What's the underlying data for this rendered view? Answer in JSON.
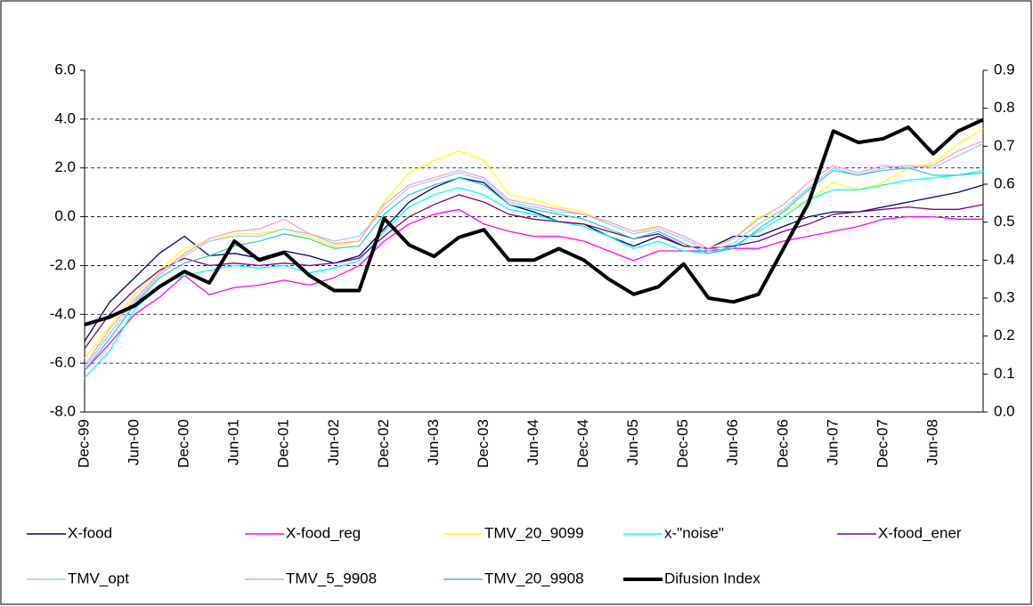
{
  "chart_data": {
    "type": "line",
    "categories": [
      "Dec-99",
      null,
      "Jun-00",
      null,
      "Dec-00",
      null,
      "Jun-01",
      null,
      "Dec-01",
      null,
      "Jun-02",
      null,
      "Dec-02",
      null,
      "Jun-03",
      null,
      "Dec-03",
      null,
      "Jun-04",
      null,
      "Dec-04",
      null,
      "Jun-05",
      null,
      "Dec-05",
      null,
      "Jun-06",
      null,
      "Dec-06",
      null,
      "Jun-07",
      null,
      "Dec-07",
      null,
      "Jun-08",
      null,
      null
    ],
    "ylim": [
      -8,
      6
    ],
    "yticks": [
      {
        "value": -8,
        "label": "-8.0"
      },
      {
        "value": -6,
        "label": "-6.0"
      },
      {
        "value": -4,
        "label": "-4.0"
      },
      {
        "value": -2,
        "label": "-2.0"
      },
      {
        "value": 0,
        "label": "0.0"
      },
      {
        "value": 2,
        "label": "2.0"
      },
      {
        "value": 4,
        "label": "4.0"
      },
      {
        "value": 6,
        "label": "6.0"
      }
    ],
    "y2lim": [
      0,
      0.9
    ],
    "y2ticks": [
      {
        "value": 0,
        "label": "0.0"
      },
      0.1,
      0.2,
      0.3,
      0.4,
      0.5,
      0.6,
      0.7,
      0.8,
      0.9
    ],
    "grid": true,
    "series": [
      {
        "name": "X-food",
        "color": "#000080",
        "values": [
          -5.1,
          -3.5,
          -2.5,
          -1.5,
          -0.8,
          -1.6,
          -1.5,
          -1.7,
          -1.4,
          -1.6,
          -1.9,
          -1.6,
          -0.5,
          0.6,
          1.2,
          1.6,
          1.4,
          0.5,
          0.2,
          -0.2,
          -0.3,
          -0.8,
          -1.2,
          -0.8,
          -1.2,
          -1.3,
          -0.8,
          -0.8,
          -0.4,
          0,
          0.2,
          0.2,
          0.4,
          0.6,
          0.8,
          1.0,
          1.3
        ]
      },
      {
        "name": "X-food_reg",
        "color": "#ff00ff",
        "values": [
          -6.3,
          -5.2,
          -4.0,
          -3.3,
          -2.4,
          -3.2,
          -2.9,
          -2.8,
          -2.6,
          -2.8,
          -2.5,
          -2.0,
          -1.0,
          -0.3,
          0.1,
          0.3,
          -0.3,
          -0.6,
          -0.8,
          -0.8,
          -1.0,
          -1.4,
          -1.8,
          -1.4,
          -1.4,
          -1.4,
          -1.3,
          -1.3,
          -1.0,
          -0.8,
          -0.6,
          -0.4,
          -0.1,
          0,
          0,
          -0.1,
          -0.1
        ]
      },
      {
        "name": "TMV_20_9099",
        "color": "#ffff00",
        "values": [
          -5.8,
          -4.5,
          -3.2,
          -2.2,
          -1.3,
          -1.0,
          -0.7,
          -0.7,
          -0.5,
          -0.8,
          -1.2,
          -1.0,
          0.6,
          1.8,
          2.3,
          2.7,
          2.3,
          0.9,
          0.7,
          0.4,
          0.2,
          -0.3,
          -0.7,
          -0.4,
          -0.8,
          -1.3,
          -0.9,
          0,
          0.2,
          0.7,
          1.4,
          1.1,
          1.4,
          2.0,
          2.2,
          3.0,
          3.6
        ]
      },
      {
        "name": "x-\"noise\"",
        "color": "#00ffff",
        "values": [
          -6.6,
          -5.5,
          -3.8,
          -2.8,
          -2.4,
          -2.2,
          -2.0,
          -2.1,
          -2.0,
          -2.3,
          -2.1,
          -1.8,
          -0.6,
          0.4,
          0.9,
          1.2,
          0.9,
          0.3,
          0.1,
          -0.2,
          -0.4,
          -0.8,
          -1.3,
          -1.0,
          -1.4,
          -1.5,
          -1.2,
          -0.6,
          0,
          0.7,
          1.1,
          1.1,
          1.3,
          1.5,
          1.6,
          1.7,
          1.9
        ]
      },
      {
        "name": "X-food_ener",
        "color": "#800080",
        "values": [
          -5.4,
          -4.0,
          -3.0,
          -2.2,
          -1.7,
          -2.0,
          -1.9,
          -2.0,
          -1.9,
          -2.0,
          -1.9,
          -1.7,
          -0.8,
          0.0,
          0.5,
          0.9,
          0.6,
          0.1,
          -0.1,
          -0.2,
          -0.3,
          -0.6,
          -0.9,
          -0.7,
          -1.2,
          -1.3,
          -1.2,
          -1.0,
          -0.6,
          -0.3,
          0.1,
          0.2,
          0.3,
          0.4,
          0.3,
          0.3,
          0.5
        ]
      },
      {
        "name": "TMV_opt",
        "color": "#99ccff",
        "values": [
          -6.2,
          -4.8,
          -3.5,
          -2.4,
          -1.6,
          -1.0,
          -0.8,
          -0.8,
          -0.5,
          -0.7,
          -1.0,
          -0.8,
          0.3,
          1.2,
          1.5,
          1.8,
          1.5,
          0.6,
          0.4,
          0.2,
          0.1,
          -0.3,
          -0.7,
          -0.5,
          -0.9,
          -1.4,
          -1.1,
          -0.3,
          0.3,
          1.2,
          2.0,
          1.7,
          2.0,
          2.1,
          2.0,
          2.5,
          3.0
        ]
      },
      {
        "name": "TMV_5_9908",
        "color": "#ff99cc",
        "values": [
          -6.1,
          -4.6,
          -3.4,
          -2.3,
          -1.5,
          -0.9,
          -0.6,
          -0.5,
          -0.1,
          -0.7,
          -1.1,
          -1.0,
          0.5,
          1.3,
          1.6,
          1.9,
          1.6,
          0.7,
          0.5,
          0.3,
          0.1,
          -0.2,
          -0.6,
          -0.4,
          -0.8,
          -1.3,
          -0.9,
          -0.1,
          0.5,
          1.4,
          2.1,
          1.8,
          2.1,
          2.0,
          2.1,
          2.7,
          3.1
        ]
      },
      {
        "name": "TMV_20_9908",
        "color": "#33cccc",
        "values": [
          -6.3,
          -5.0,
          -3.6,
          -2.5,
          -1.9,
          -1.6,
          -1.2,
          -1.0,
          -0.7,
          -0.9,
          -1.3,
          -1.2,
          0.1,
          0.9,
          1.3,
          1.6,
          1.3,
          0.5,
          0.3,
          0.1,
          -0.1,
          -0.5,
          -0.9,
          -0.6,
          -1.1,
          -1.5,
          -1.3,
          -0.5,
          0.2,
          1.1,
          1.9,
          1.7,
          1.9,
          2.0,
          1.7,
          1.7,
          1.8
        ]
      },
      {
        "name": "Difusion Index",
        "color": "#000000",
        "axis": "y2",
        "values": [
          0.23,
          0.25,
          0.28,
          0.33,
          0.37,
          0.34,
          0.45,
          0.4,
          0.42,
          0.36,
          0.32,
          0.32,
          0.51,
          0.44,
          0.41,
          0.46,
          0.48,
          0.4,
          0.4,
          0.43,
          0.4,
          0.35,
          0.31,
          0.33,
          0.39,
          0.3,
          0.29,
          0.31,
          0.43,
          0.55,
          0.74,
          0.71,
          0.72,
          0.75,
          0.68,
          0.74,
          0.77
        ]
      }
    ]
  }
}
